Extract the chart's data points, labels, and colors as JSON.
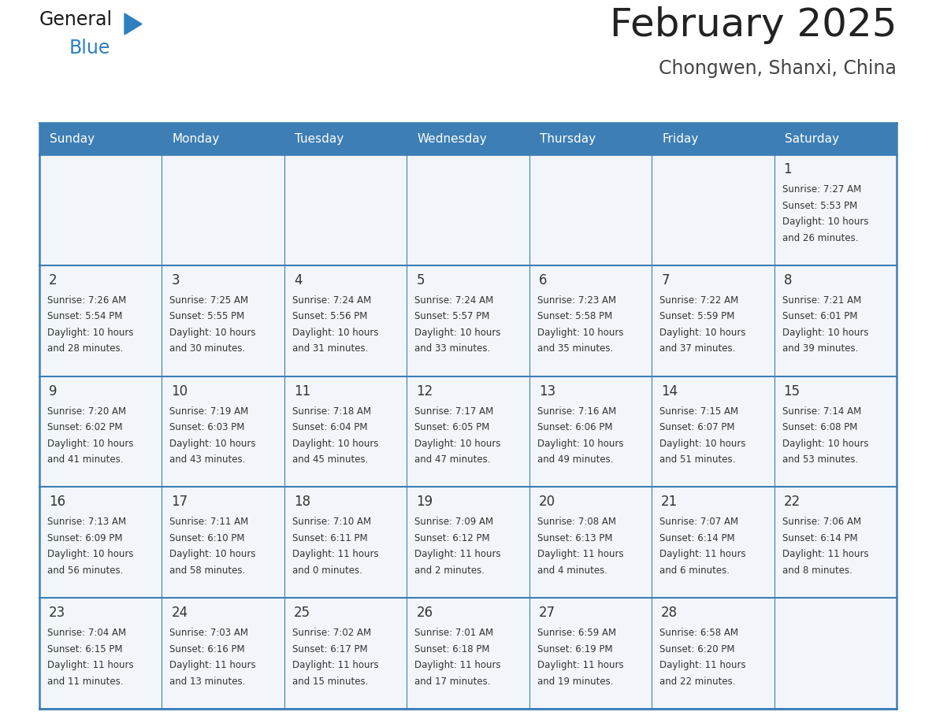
{
  "title": "February 2025",
  "subtitle": "Chongwen, Shanxi, China",
  "days_of_week": [
    "Sunday",
    "Monday",
    "Tuesday",
    "Wednesday",
    "Thursday",
    "Friday",
    "Saturday"
  ],
  "header_bg_color": "#3D7EB5",
  "header_text_color": "#FFFFFF",
  "cell_bg_color": "#F2F6FA",
  "border_color": "#3D7EB5",
  "day_num_color": "#333333",
  "info_text_color": "#333333",
  "title_color": "#222222",
  "subtitle_color": "#444444",
  "logo_general_color": "#1a1a1a",
  "logo_blue_color": "#2E7FC0",
  "weeks": [
    {
      "days": [
        {
          "date": null,
          "info": ""
        },
        {
          "date": null,
          "info": ""
        },
        {
          "date": null,
          "info": ""
        },
        {
          "date": null,
          "info": ""
        },
        {
          "date": null,
          "info": ""
        },
        {
          "date": null,
          "info": ""
        },
        {
          "date": 1,
          "info": "Sunrise: 7:27 AM\nSunset: 5:53 PM\nDaylight: 10 hours\nand 26 minutes."
        }
      ]
    },
    {
      "days": [
        {
          "date": 2,
          "info": "Sunrise: 7:26 AM\nSunset: 5:54 PM\nDaylight: 10 hours\nand 28 minutes."
        },
        {
          "date": 3,
          "info": "Sunrise: 7:25 AM\nSunset: 5:55 PM\nDaylight: 10 hours\nand 30 minutes."
        },
        {
          "date": 4,
          "info": "Sunrise: 7:24 AM\nSunset: 5:56 PM\nDaylight: 10 hours\nand 31 minutes."
        },
        {
          "date": 5,
          "info": "Sunrise: 7:24 AM\nSunset: 5:57 PM\nDaylight: 10 hours\nand 33 minutes."
        },
        {
          "date": 6,
          "info": "Sunrise: 7:23 AM\nSunset: 5:58 PM\nDaylight: 10 hours\nand 35 minutes."
        },
        {
          "date": 7,
          "info": "Sunrise: 7:22 AM\nSunset: 5:59 PM\nDaylight: 10 hours\nand 37 minutes."
        },
        {
          "date": 8,
          "info": "Sunrise: 7:21 AM\nSunset: 6:01 PM\nDaylight: 10 hours\nand 39 minutes."
        }
      ]
    },
    {
      "days": [
        {
          "date": 9,
          "info": "Sunrise: 7:20 AM\nSunset: 6:02 PM\nDaylight: 10 hours\nand 41 minutes."
        },
        {
          "date": 10,
          "info": "Sunrise: 7:19 AM\nSunset: 6:03 PM\nDaylight: 10 hours\nand 43 minutes."
        },
        {
          "date": 11,
          "info": "Sunrise: 7:18 AM\nSunset: 6:04 PM\nDaylight: 10 hours\nand 45 minutes."
        },
        {
          "date": 12,
          "info": "Sunrise: 7:17 AM\nSunset: 6:05 PM\nDaylight: 10 hours\nand 47 minutes."
        },
        {
          "date": 13,
          "info": "Sunrise: 7:16 AM\nSunset: 6:06 PM\nDaylight: 10 hours\nand 49 minutes."
        },
        {
          "date": 14,
          "info": "Sunrise: 7:15 AM\nSunset: 6:07 PM\nDaylight: 10 hours\nand 51 minutes."
        },
        {
          "date": 15,
          "info": "Sunrise: 7:14 AM\nSunset: 6:08 PM\nDaylight: 10 hours\nand 53 minutes."
        }
      ]
    },
    {
      "days": [
        {
          "date": 16,
          "info": "Sunrise: 7:13 AM\nSunset: 6:09 PM\nDaylight: 10 hours\nand 56 minutes."
        },
        {
          "date": 17,
          "info": "Sunrise: 7:11 AM\nSunset: 6:10 PM\nDaylight: 10 hours\nand 58 minutes."
        },
        {
          "date": 18,
          "info": "Sunrise: 7:10 AM\nSunset: 6:11 PM\nDaylight: 11 hours\nand 0 minutes."
        },
        {
          "date": 19,
          "info": "Sunrise: 7:09 AM\nSunset: 6:12 PM\nDaylight: 11 hours\nand 2 minutes."
        },
        {
          "date": 20,
          "info": "Sunrise: 7:08 AM\nSunset: 6:13 PM\nDaylight: 11 hours\nand 4 minutes."
        },
        {
          "date": 21,
          "info": "Sunrise: 7:07 AM\nSunset: 6:14 PM\nDaylight: 11 hours\nand 6 minutes."
        },
        {
          "date": 22,
          "info": "Sunrise: 7:06 AM\nSunset: 6:14 PM\nDaylight: 11 hours\nand 8 minutes."
        }
      ]
    },
    {
      "days": [
        {
          "date": 23,
          "info": "Sunrise: 7:04 AM\nSunset: 6:15 PM\nDaylight: 11 hours\nand 11 minutes."
        },
        {
          "date": 24,
          "info": "Sunrise: 7:03 AM\nSunset: 6:16 PM\nDaylight: 11 hours\nand 13 minutes."
        },
        {
          "date": 25,
          "info": "Sunrise: 7:02 AM\nSunset: 6:17 PM\nDaylight: 11 hours\nand 15 minutes."
        },
        {
          "date": 26,
          "info": "Sunrise: 7:01 AM\nSunset: 6:18 PM\nDaylight: 11 hours\nand 17 minutes."
        },
        {
          "date": 27,
          "info": "Sunrise: 6:59 AM\nSunset: 6:19 PM\nDaylight: 11 hours\nand 19 minutes."
        },
        {
          "date": 28,
          "info": "Sunrise: 6:58 AM\nSunset: 6:20 PM\nDaylight: 11 hours\nand 22 minutes."
        },
        {
          "date": null,
          "info": ""
        }
      ]
    }
  ]
}
